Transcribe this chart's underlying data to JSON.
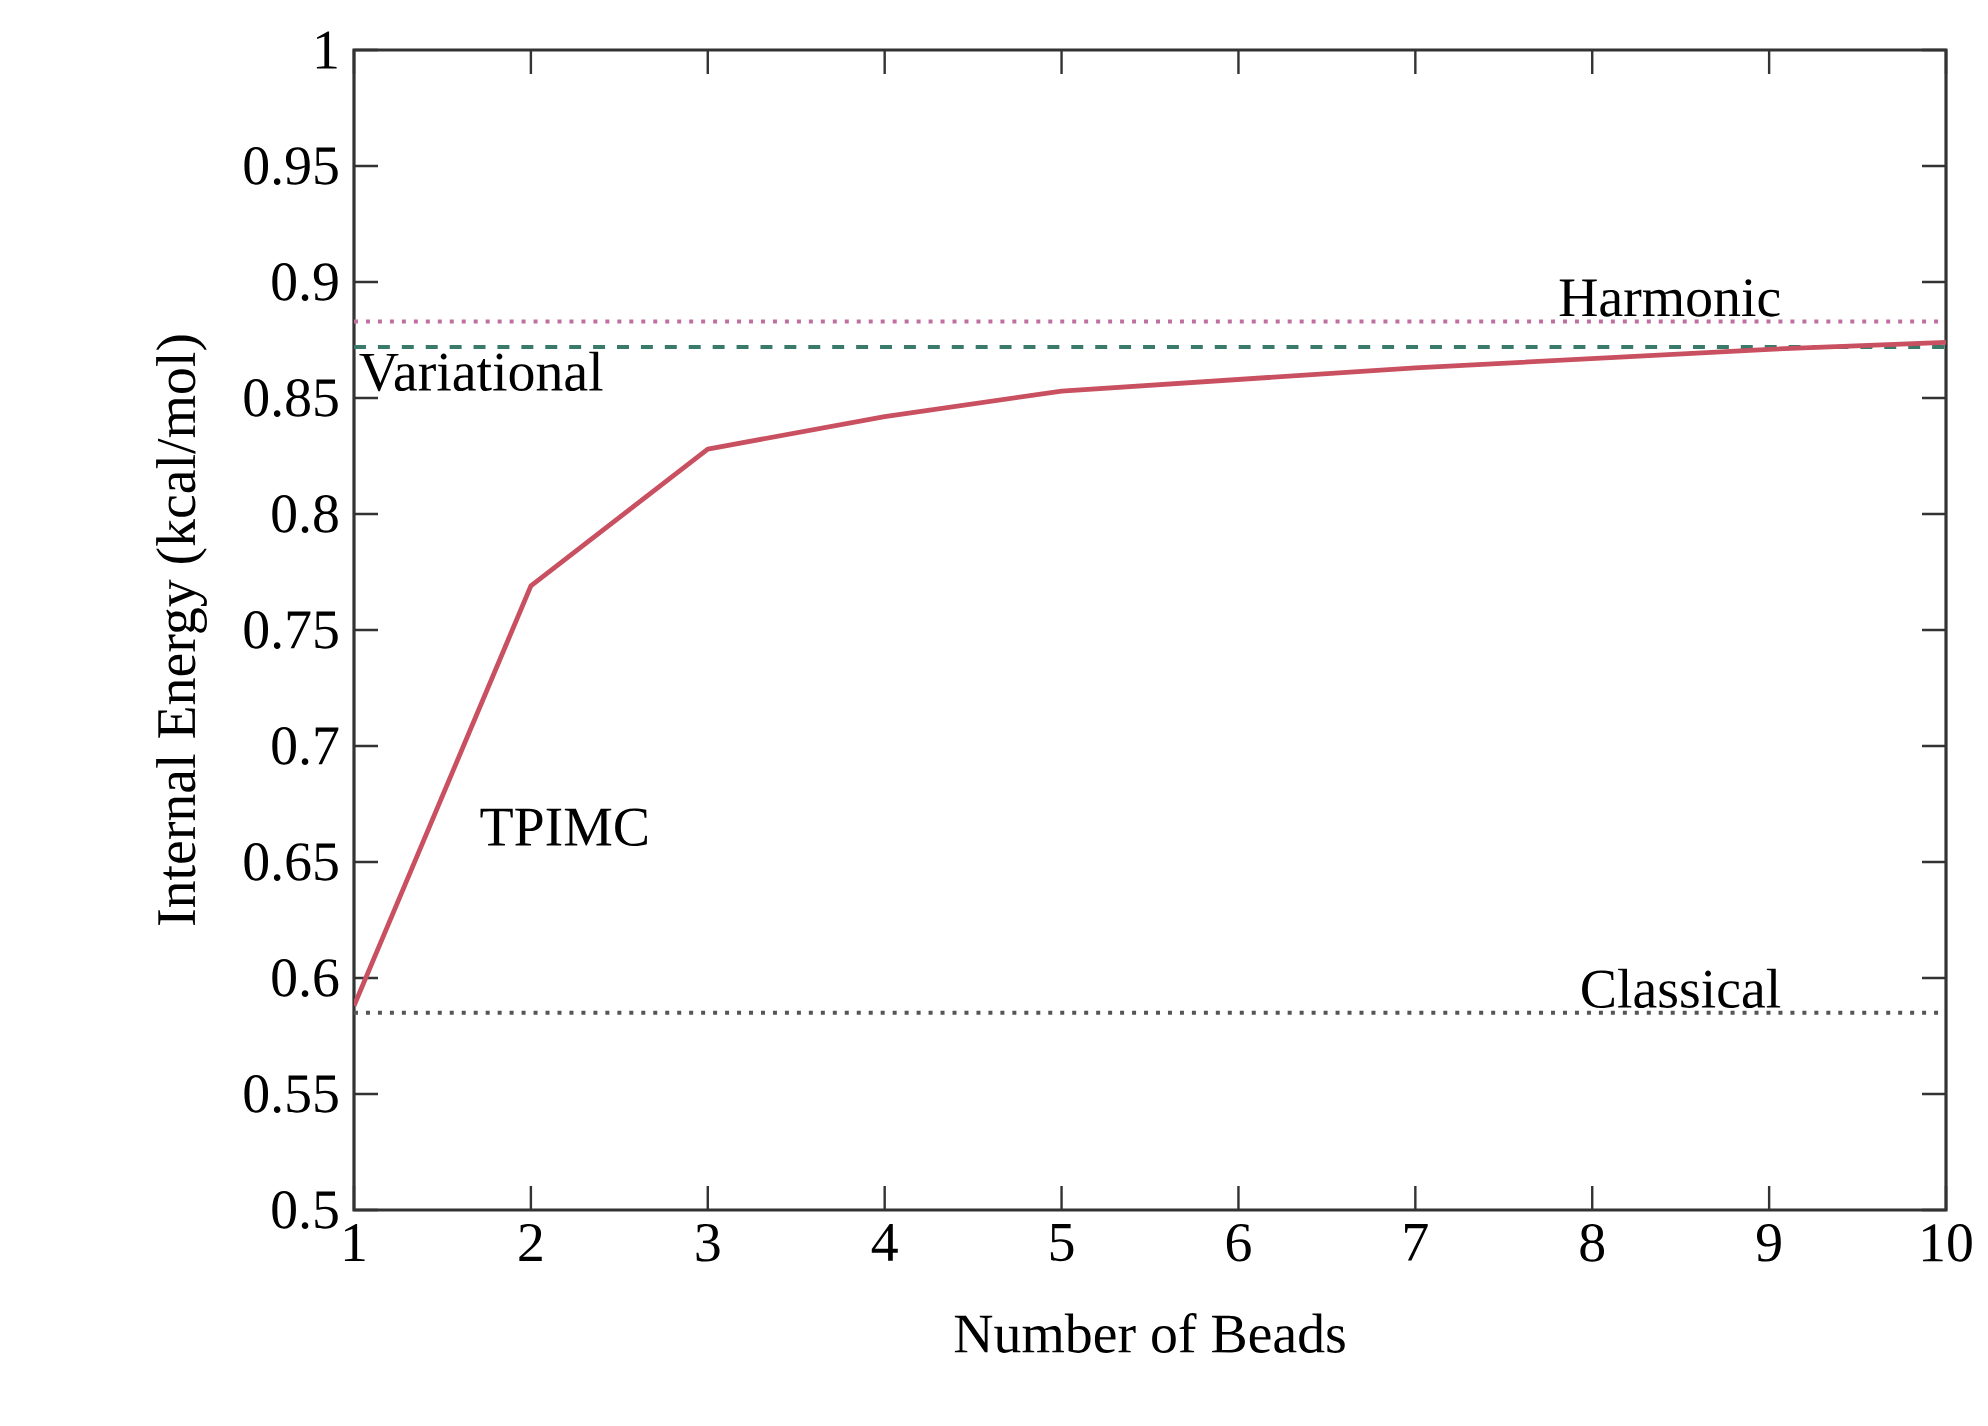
{
  "chart_data": {
    "type": "line",
    "xlabel": "Number of Beads",
    "ylabel": "Internal Energy (kcal/mol)",
    "x": [
      1,
      2,
      3,
      4,
      5,
      6,
      7,
      8,
      9,
      10
    ],
    "series": [
      {
        "name": "TPIMC",
        "color": "#c85060",
        "values": [
          0.588,
          0.769,
          0.828,
          0.842,
          0.853,
          0.858,
          0.863,
          0.867,
          0.871,
          0.874
        ]
      }
    ],
    "xlim": [
      1,
      10
    ],
    "xticks": [
      1,
      2,
      3,
      4,
      5,
      6,
      7,
      8,
      9,
      10
    ],
    "ylim": [
      0.5,
      1
    ],
    "yticks": [
      0.5,
      0.55,
      0.6,
      0.65,
      0.7,
      0.75,
      0.8,
      0.85,
      0.9,
      0.95,
      1
    ],
    "ref_lines": [
      {
        "axis": "y",
        "value": 0.883,
        "label": "Harmonic",
        "color": "#c070a0",
        "line_style": "dotted"
      },
      {
        "axis": "y",
        "value": 0.872,
        "label": "Variational",
        "color": "#3a7a6a",
        "line_style": "dashed"
      },
      {
        "axis": "y",
        "value": 0.585,
        "label": "Classical",
        "color": "#555555",
        "line_style": "dotted"
      }
    ],
    "grid": false,
    "legend": false,
    "marker": "none",
    "line_style": "solid"
  }
}
